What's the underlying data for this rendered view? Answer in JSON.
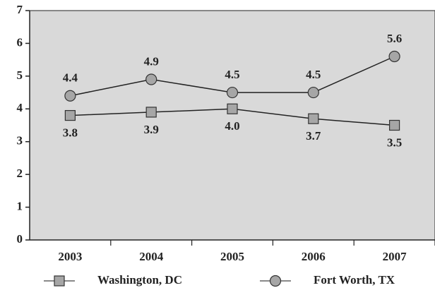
{
  "chart_data": {
    "type": "line",
    "categories": [
      "2003",
      "2004",
      "2005",
      "2006",
      "2007"
    ],
    "series": [
      {
        "name": "Washington, DC",
        "color": "#a6a6a6",
        "marker": "square",
        "values": [
          3.8,
          3.9,
          4.0,
          3.7,
          3.5
        ],
        "value_labels": [
          "3.8",
          "3.9",
          "4.0",
          "3.7",
          "3.5"
        ]
      },
      {
        "name": "Fort Worth, TX",
        "color": "#a6a6a6",
        "marker": "circle",
        "values": [
          4.4,
          4.9,
          4.5,
          4.5,
          5.6
        ],
        "value_labels": [
          "4.4",
          "4.9",
          "4.5",
          "4.5",
          "5.6"
        ]
      }
    ],
    "ylim": [
      0,
      7
    ],
    "yticks": [
      0,
      1,
      2,
      3,
      4,
      5,
      6,
      7
    ],
    "legend": "bottom"
  }
}
